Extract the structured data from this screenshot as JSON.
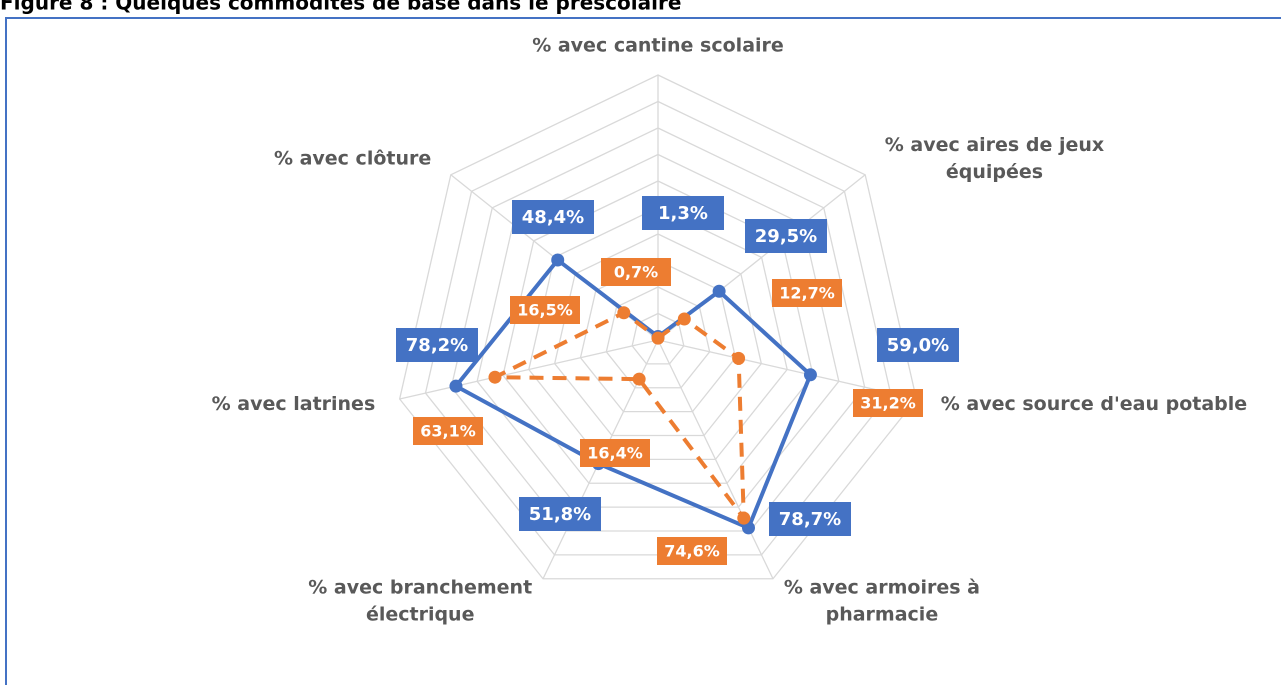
{
  "chart_data": {
    "type": "radar",
    "title": "Figure 8 : Quelques commodités de base dans le préscolaire",
    "categories": [
      [
        "% avec cantine scolaire"
      ],
      [
        "% avec aires de jeux",
        "équipées"
      ],
      [
        "% avec source d'eau potable"
      ],
      [
        "% avec armoires à",
        "pharmacie"
      ],
      [
        "% avec branchement",
        "électrique"
      ],
      [
        "% avec latrines"
      ],
      [
        "% avec clôture"
      ]
    ],
    "series": [
      {
        "color": "#4472c4",
        "values": [
          1.3,
          29.5,
          59.0,
          78.7,
          51.8,
          78.2,
          48.4
        ],
        "value_labels": [
          "1,3%",
          "29,5%",
          "59,0%",
          "78,7%",
          "51,8%",
          "78,2%",
          "48,4%"
        ]
      },
      {
        "color": "#ed7d31",
        "dashed": true,
        "values": [
          0.7,
          12.7,
          31.2,
          74.6,
          16.4,
          63.1,
          16.5
        ],
        "value_labels": [
          "0,7%",
          "12,7%",
          "31,2%",
          "74,6%",
          "16,4%",
          "63,1%",
          "16,5%"
        ]
      }
    ],
    "rlim": [
      0,
      100
    ],
    "rticks": [
      0,
      10,
      20,
      30,
      40,
      50,
      60,
      70,
      80,
      90,
      100
    ],
    "grid": true
  }
}
